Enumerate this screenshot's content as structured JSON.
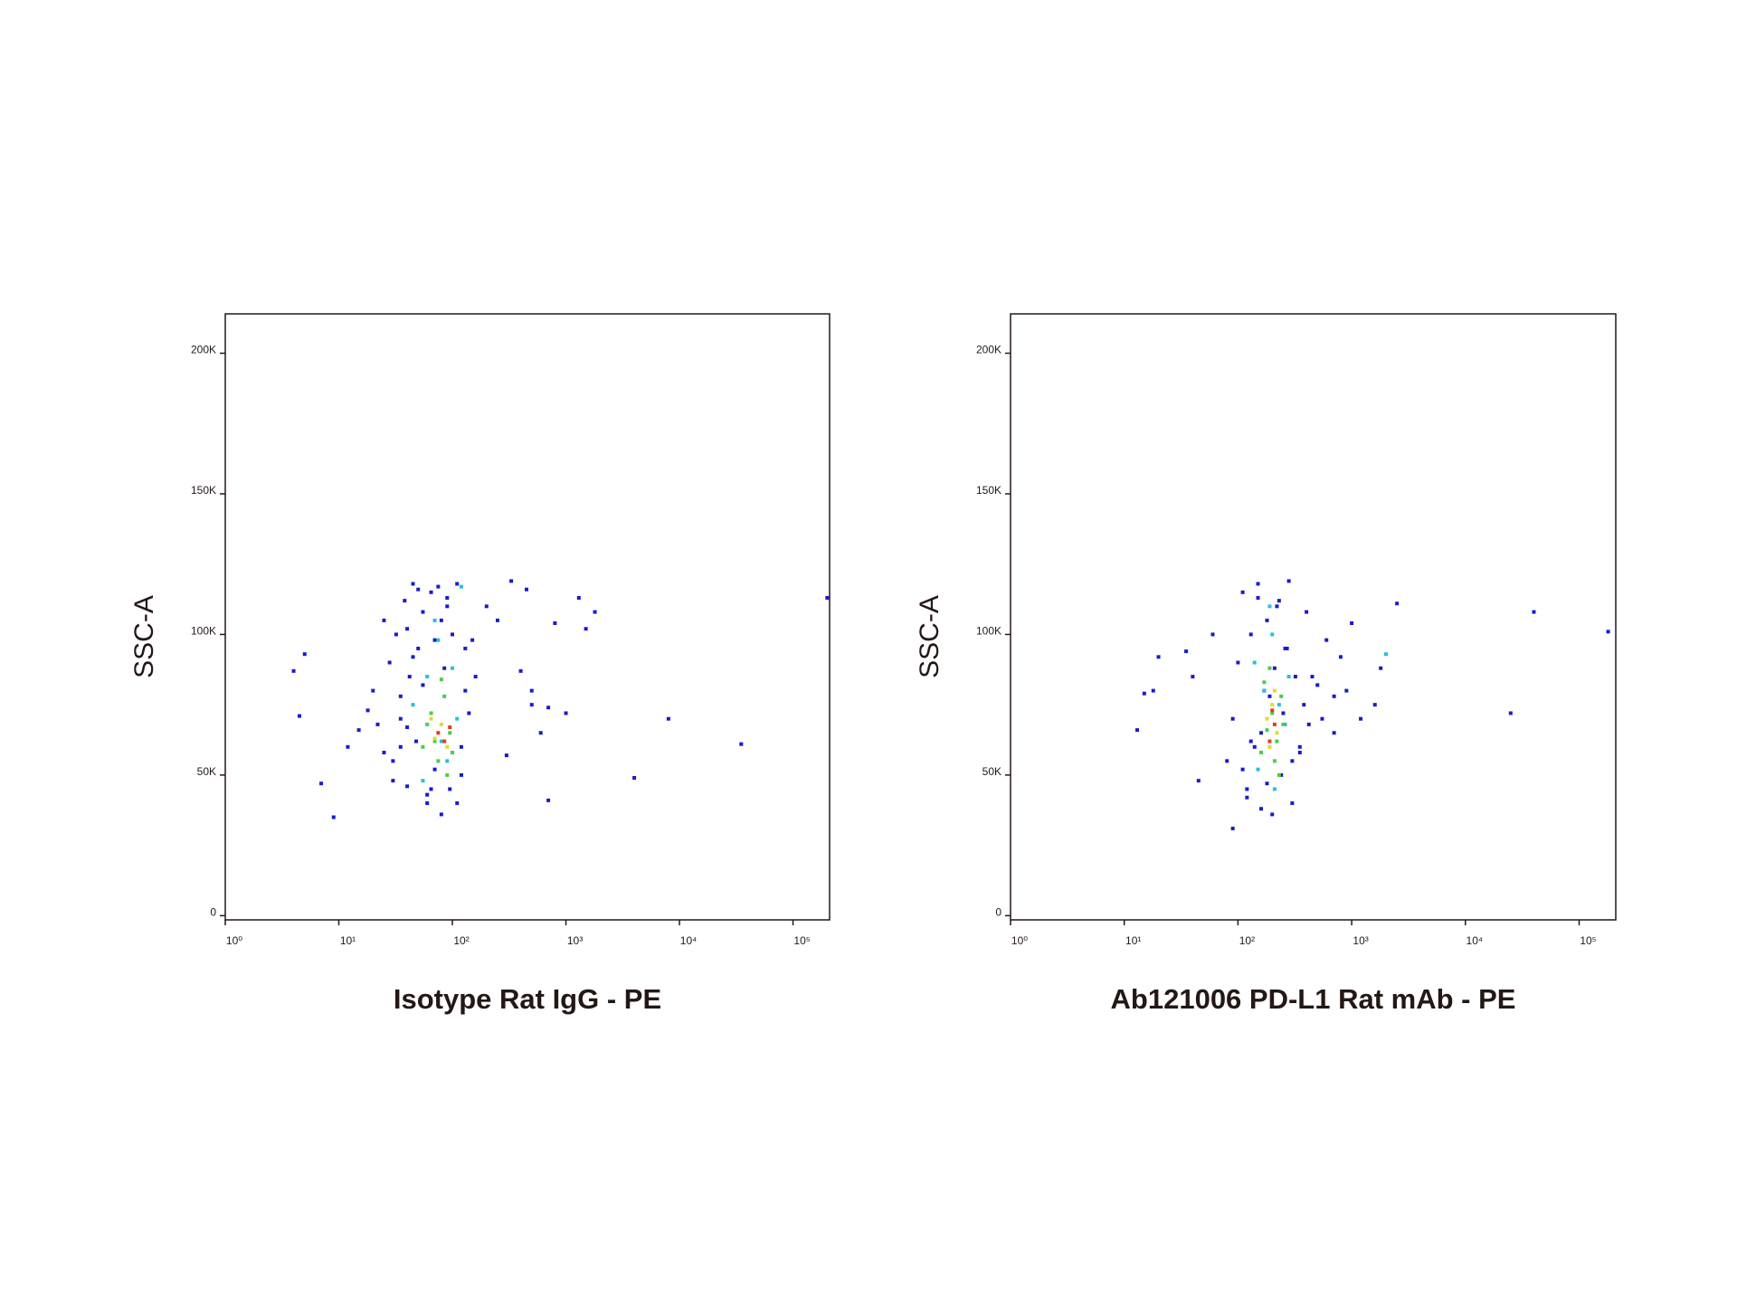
{
  "chart_data": [
    {
      "type": "scatter",
      "x_label": "Isotype Rat IgG - PE",
      "y_label": "SSC-A",
      "log_x": true,
      "xlim": [
        1,
        210000
      ],
      "ylim": [
        -1500,
        214000
      ],
      "xticks": [
        {
          "value": 1,
          "label": "10⁰"
        },
        {
          "value": 10,
          "label": "10¹"
        },
        {
          "value": 100,
          "label": "10²"
        },
        {
          "value": 1000,
          "label": "10³"
        },
        {
          "value": 10000,
          "label": "10⁴"
        },
        {
          "value": 100000,
          "label": "10⁵"
        }
      ],
      "yticks": [
        0,
        {
          "value": 50000,
          "label": "50K"
        },
        {
          "value": 100000,
          "label": "100K"
        },
        {
          "value": 150000,
          "label": "150K"
        },
        {
          "value": 200000,
          "label": "200K"
        }
      ],
      "series": [
        {
          "color": "#1a1ad0",
          "x": [
            4,
            5,
            4.5,
            7,
            9,
            12,
            15,
            18,
            20,
            22,
            25,
            28,
            30,
            32,
            35,
            38,
            40,
            42,
            45,
            48,
            50,
            55,
            60,
            65,
            70,
            75,
            80,
            85,
            90,
            95,
            100,
            110,
            120,
            130,
            140,
            25,
            30,
            35,
            40,
            45,
            50,
            60,
            70,
            90,
            110,
            130,
            150,
            200,
            250,
            330,
            400,
            450,
            500,
            600,
            700,
            800,
            1000,
            1300,
            1800,
            1500,
            4000,
            8000,
            35000,
            200000,
            700,
            500,
            300,
            160,
            35,
            55,
            80,
            120,
            40,
            65
          ],
          "values": [
            87000,
            93000,
            71000,
            47000,
            35000,
            60000,
            66000,
            73000,
            80000,
            68000,
            105000,
            90000,
            55000,
            100000,
            78000,
            112000,
            46000,
            85000,
            118000,
            62000,
            95000,
            108000,
            40000,
            115000,
            52000,
            117000,
            36000,
            88000,
            110000,
            45000,
            100000,
            118000,
            60000,
            80000,
            72000,
            58000,
            48000,
            60000,
            102000,
            92000,
            116000,
            43000,
            98000,
            113000,
            40000,
            95000,
            98000,
            110000,
            105000,
            119000,
            87000,
            116000,
            80000,
            65000,
            74000,
            104000,
            72000,
            113000,
            108000,
            102000,
            49000,
            70000,
            61000,
            113000,
            41000,
            75000,
            57000,
            85000,
            70000,
            82000,
            105000,
            50000,
            67000,
            45000
          ]
        },
        {
          "color": "#22c3d8",
          "x": [
            45,
            60,
            75,
            90,
            100,
            110,
            55,
            80,
            120,
            70
          ],
          "values": [
            75000,
            85000,
            98000,
            55000,
            88000,
            70000,
            48000,
            62000,
            117000,
            105000
          ]
        },
        {
          "color": "#4ccc4c",
          "x": [
            55,
            65,
            75,
            85,
            95,
            60,
            80,
            100,
            70,
            90
          ],
          "values": [
            60000,
            72000,
            55000,
            78000,
            65000,
            68000,
            84000,
            58000,
            62000,
            50000
          ]
        },
        {
          "color": "#e6d82e",
          "x": [
            70,
            80,
            90,
            65
          ],
          "values": [
            63000,
            68000,
            60000,
            70000
          ]
        },
        {
          "color": "#e83a1a",
          "x": [
            75,
            85,
            95
          ],
          "values": [
            65000,
            62000,
            67000
          ]
        }
      ]
    },
    {
      "type": "scatter",
      "x_label": "Ab121006 PD-L1 Rat mAb - PE",
      "y_label": "SSC-A",
      "log_x": true,
      "xlim": [
        1,
        210000
      ],
      "ylim": [
        -1500,
        214000
      ],
      "xticks": [
        {
          "value": 1,
          "label": "10⁰"
        },
        {
          "value": 10,
          "label": "10¹"
        },
        {
          "value": 100,
          "label": "10²"
        },
        {
          "value": 1000,
          "label": "10³"
        },
        {
          "value": 10000,
          "label": "10⁴"
        },
        {
          "value": 100000,
          "label": "10⁵"
        }
      ],
      "yticks": [
        0,
        {
          "value": 50000,
          "label": "50K"
        },
        {
          "value": 100000,
          "label": "100K"
        },
        {
          "value": 150000,
          "label": "150K"
        },
        {
          "value": 200000,
          "label": "200K"
        }
      ],
      "series": [
        {
          "color": "#1a1ad0",
          "x": [
            13,
            15,
            18,
            20,
            35,
            40,
            45,
            60,
            90,
            25000,
            40000,
            180000,
            2500,
            1800,
            1600,
            1200,
            700,
            80,
            90,
            100,
            110,
            120,
            130,
            140,
            150,
            160,
            170,
            180,
            200,
            220,
            240,
            260,
            280,
            300,
            320,
            350,
            380,
            420,
            500,
            600,
            800,
            1000,
            110,
            130,
            150,
            180,
            210,
            250,
            300,
            350,
            400,
            120,
            160,
            190,
            230,
            270,
            450,
            550,
            700,
            900
          ],
          "values": [
            66000,
            79000,
            80000,
            92000,
            94000,
            85000,
            48000,
            100000,
            31000,
            72000,
            108000,
            101000,
            111000,
            88000,
            75000,
            70000,
            65000,
            55000,
            70000,
            90000,
            115000,
            45000,
            100000,
            60000,
            118000,
            38000,
            80000,
            105000,
            36000,
            110000,
            50000,
            95000,
            119000,
            40000,
            85000,
            58000,
            75000,
            68000,
            82000,
            98000,
            92000,
            104000,
            52000,
            62000,
            113000,
            47000,
            88000,
            72000,
            55000,
            60000,
            108000,
            42000,
            65000,
            78000,
            112000,
            95000,
            85000,
            70000,
            78000,
            80000
          ]
        },
        {
          "color": "#22c3d8",
          "x": [
            140,
            170,
            200,
            230,
            260,
            150,
            190,
            280,
            2000,
            210
          ],
          "values": [
            90000,
            80000,
            100000,
            75000,
            68000,
            52000,
            110000,
            85000,
            93000,
            45000
          ]
        },
        {
          "color": "#4ccc4c",
          "x": [
            160,
            180,
            200,
            220,
            240,
            170,
            210,
            250,
            190,
            230
          ],
          "values": [
            58000,
            66000,
            72000,
            62000,
            78000,
            83000,
            55000,
            68000,
            88000,
            50000
          ]
        },
        {
          "color": "#e6d82e",
          "x": [
            180,
            200,
            220,
            210,
            190
          ],
          "values": [
            70000,
            75000,
            65000,
            80000,
            60000
          ]
        },
        {
          "color": "#e83a1a",
          "x": [
            190,
            210,
            200
          ],
          "values": [
            62000,
            68000,
            73000
          ]
        }
      ]
    }
  ]
}
